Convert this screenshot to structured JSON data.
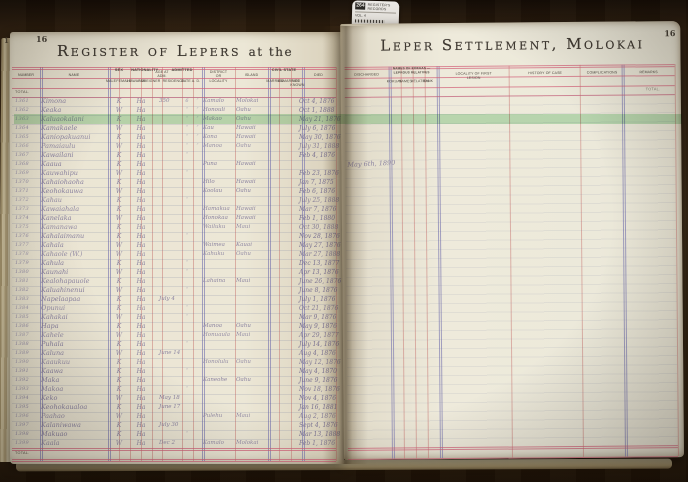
{
  "photo": {
    "label_tab": {
      "code": "264",
      "line1": "REGISTER'S",
      "line2": "RECORDS",
      "line3": "VOL. 4"
    },
    "colors": {
      "wood": "#33220f",
      "paper": "#ece7d6",
      "rule_pink": "#d25f78",
      "rule_red": "#cb7e78",
      "rule_blue": "#807eb2",
      "highlight_green": "#8cd296",
      "ink": "#8a82a0",
      "print": "#3f3932"
    }
  },
  "highlight": {
    "row": 3
  },
  "left_page": {
    "page_number": "16",
    "edge_number": "1",
    "title_main": "Register of Lepers",
    "title_suffix": "at the",
    "total_label": "Total.",
    "columns": {
      "number": "Number",
      "name": "Name",
      "sex": {
        "group": "Sex",
        "subs": [
          "Male",
          "Female"
        ]
      },
      "nationality": {
        "group": "Nationality",
        "subs": [
          "Hawaiian",
          "Foreigner"
        ]
      },
      "age": "Age at Adm.",
      "admitted": {
        "group": "Admitted",
        "subs": [
          "Residence",
          "Date",
          "A. D."
        ]
      },
      "district": "District or Locality",
      "island": "Island",
      "civil_state": {
        "group": "Civil State",
        "subs": [
          "Married",
          "Unmarried",
          "Not Known"
        ]
      },
      "died": "Died"
    },
    "rows": [
      {
        "n": "1361",
        "nm": "Kimona",
        "sx": "K",
        "ha": "Ha",
        "res": "350",
        "dt": "6",
        "ad": "″",
        "loc": "Kamalo",
        "isl": "Molokai",
        "d": "Oct 4, 1876"
      },
      {
        "n": "1362",
        "nm": "Keaka",
        "sx": "W",
        "ha": "Ha",
        "dt": "″",
        "ad": "″",
        "loc": "Honouli",
        "isl": "Oahu",
        "d": "Oct 1, 1888"
      },
      {
        "n": "1363",
        "nm": "Kaluaokalani",
        "sx": "K",
        "ha": "Ha",
        "dt": "″",
        "ad": "″",
        "loc": "Makao",
        "isl": "Oahu",
        "d": "May 21, 1876"
      },
      {
        "n": "1364",
        "nm": "Kamakaele",
        "sx": "W",
        "ha": "Ha",
        "dt": "″",
        "ad": "″",
        "loc": "Kau",
        "isl": "Hawaii",
        "d": "July 6, 1876"
      },
      {
        "n": "1365",
        "nm": "Kaniopakuanui",
        "sx": "K",
        "ha": "Ha",
        "dt": "″",
        "ad": "″",
        "loc": "Kona",
        "isl": "Hawaii",
        "d": "May 30, 1876"
      },
      {
        "n": "1366",
        "nm": "Pamaiaulu",
        "sx": "W",
        "ha": "Ha",
        "dt": "″",
        "ad": "″",
        "loc": "Manoa",
        "isl": "Oahu",
        "d": "July 31, 1888"
      },
      {
        "n": "1367",
        "nm": "Kawailani",
        "sx": "K",
        "ha": "Ha",
        "dt": "″",
        "d": "Feb 4, 1876"
      },
      {
        "n": "1368",
        "nm": "Kaaua",
        "sx": "K",
        "ha": "Ha",
        "loc": "Puna",
        "isl": "Hawaii"
      },
      {
        "n": "1369",
        "nm": "Kauwahipu",
        "sx": "W",
        "ha": "Ha",
        "dt": "″",
        "d": "Feb 23, 1876"
      },
      {
        "n": "1370",
        "nm": "Kahaiohaoha",
        "sx": "K",
        "ha": "Ha",
        "loc": "Hilo",
        "isl": "Hawaii",
        "d": "Jan 7, 1875"
      },
      {
        "n": "1371",
        "nm": "Keohokauwa",
        "sx": "W",
        "ha": "Ha",
        "loc": "Koolau",
        "isl": "Oahu",
        "d": "Feb 6, 1876"
      },
      {
        "n": "1372",
        "nm": "Kahau",
        "sx": "K",
        "ha": "Ha",
        "dt": "″",
        "d": "July 25, 1888"
      },
      {
        "n": "1373",
        "nm": "Kawaiahala",
        "sx": "K",
        "ha": "Ha",
        "loc": "Hamakua",
        "isl": "Hawaii",
        "d": "Mar 7, 1876"
      },
      {
        "n": "1374",
        "nm": "Kanelaka",
        "sx": "W",
        "ha": "Ha",
        "loc": "Honokaa",
        "isl": "Hawaii",
        "d": "Feb 1, 1880"
      },
      {
        "n": "1375",
        "nm": "Kamanawa",
        "sx": "K",
        "ha": "Ha",
        "loc": "Wailuku",
        "isl": "Maui",
        "d": "Oct 30, 1888"
      },
      {
        "n": "1376",
        "nm": "Kahalaimanu",
        "sx": "K",
        "ha": "Ha",
        "dt": "″",
        "d": "Nov 28, 1876"
      },
      {
        "n": "1377",
        "nm": "Kahala",
        "sx": "W",
        "ha": "Ha",
        "loc": "Waimea",
        "isl": "Kauai",
        "d": "May 27, 1876"
      },
      {
        "n": "1378",
        "nm": "Kahaole (W.)",
        "sx": "W",
        "ha": "Ha",
        "loc": "Kahuku",
        "isl": "Oahu",
        "d": "Mar 27, 1888"
      },
      {
        "n": "1379",
        "nm": "Kahula",
        "sx": "K",
        "ha": "Ha",
        "dt": "″",
        "d": "Dec 13, 1877"
      },
      {
        "n": "1380",
        "nm": "Kaunahi",
        "sx": "W",
        "ha": "Ha",
        "dt": "″",
        "d": "Apr 13, 1876"
      },
      {
        "n": "1381",
        "nm": "Kealohapauole",
        "sx": "K",
        "ha": "Ha",
        "loc": "Lahaina",
        "isl": "Maui",
        "d": "June 26, 1876"
      },
      {
        "n": "1382",
        "nm": "Kaluahinenui",
        "sx": "W",
        "ha": "Ha",
        "dt": "″",
        "d": "June 8, 1876"
      },
      {
        "n": "1383",
        "nm": "Napelaapaa",
        "sx": "K",
        "ha": "Ha",
        "res": "July 4",
        "d": "July 1, 1876"
      },
      {
        "n": "1384",
        "nm": "Opunui",
        "sx": "K",
        "ha": "Ha",
        "dt": "″",
        "d": "Oct 21, 1876"
      },
      {
        "n": "1385",
        "nm": "Kahakai",
        "sx": "W",
        "ha": "Ha",
        "dt": "″",
        "d": "Mar 9, 1876"
      },
      {
        "n": "1386",
        "nm": "Hapa",
        "sx": "K",
        "ha": "Ha",
        "loc": "Manoa",
        "isl": "Oahu",
        "d": "May 9, 1876"
      },
      {
        "n": "1387",
        "nm": "Kahele",
        "sx": "W",
        "ha": "Ha",
        "loc": "Honuaula",
        "isl": "Maui",
        "d": "Apr 29, 1877"
      },
      {
        "n": "1388",
        "nm": "Puhala",
        "sx": "K",
        "ha": "Ha",
        "dt": "″",
        "d": "July 14, 1876"
      },
      {
        "n": "1389",
        "nm": "Kaluna",
        "sx": "W",
        "ha": "Ha",
        "res": "June 14",
        "d": "Aug 4, 1876"
      },
      {
        "n": "1390",
        "nm": "Kaaukuu",
        "sx": "K",
        "ha": "Ha",
        "loc": "Honolulu",
        "isl": "Oahu",
        "d": "May 12, 1876"
      },
      {
        "n": "1391",
        "nm": "Kaawa",
        "sx": "K",
        "ha": "Ha",
        "dt": "″",
        "d": "May 4, 1870"
      },
      {
        "n": "1392",
        "nm": "Maka",
        "sx": "K",
        "ha": "Ha",
        "loc": "Kaneohe",
        "isl": "Oahu",
        "d": "June 9, 1876"
      },
      {
        "n": "1393",
        "nm": "Makoa",
        "sx": "K",
        "ha": "Ha",
        "dt": "″",
        "d": "Nov 18, 1876"
      },
      {
        "n": "1394",
        "nm": "Keko",
        "sx": "W",
        "ha": "Ha",
        "res": "May 18",
        "d": "Nov 4, 1876"
      },
      {
        "n": "1395",
        "nm": "Keohokaualoa",
        "sx": "K",
        "ha": "Ha",
        "res": "June 17",
        "d": "Jan 16, 1881"
      },
      {
        "n": "1396",
        "nm": "Paahao",
        "sx": "W",
        "ha": "Ha",
        "loc": "Pulehu",
        "isl": "Maui",
        "d": "Aug 2, 1876"
      },
      {
        "n": "1397",
        "nm": "Kalaniwawa",
        "sx": "K",
        "ha": "Ha",
        "res": "July 30",
        "d": "Sept 4, 1876"
      },
      {
        "n": "1398",
        "nm": "Makuao",
        "sx": "K",
        "ha": "Ha",
        "dt": "″",
        "d": "Mar 13, 1888"
      },
      {
        "n": "1399",
        "nm": "Kaala",
        "sx": "W",
        "ha": "Ha",
        "res": "Dec 2",
        "loc": "Kamalo",
        "isl": "Molokai",
        "d": "Feb 1, 1876"
      }
    ]
  },
  "right_page": {
    "page_number": "16",
    "title": "Leper Settlement, Molokai",
    "total_label": "Total.",
    "columns": {
      "discharged": "Discharged",
      "kokuas": {
        "group": "Names of Kokuas — Leprous Relatives",
        "subs": [
          "Kokuas",
          "Names",
          "Relation",
          "Rank"
        ]
      },
      "first_lesion": "Locality of First Lesion",
      "history": "History of Case",
      "complications": "Complications",
      "remarks": "Remarks"
    },
    "entries": [
      {
        "row": 8,
        "column": "discharged",
        "text": "May 6th, 1890"
      }
    ]
  }
}
